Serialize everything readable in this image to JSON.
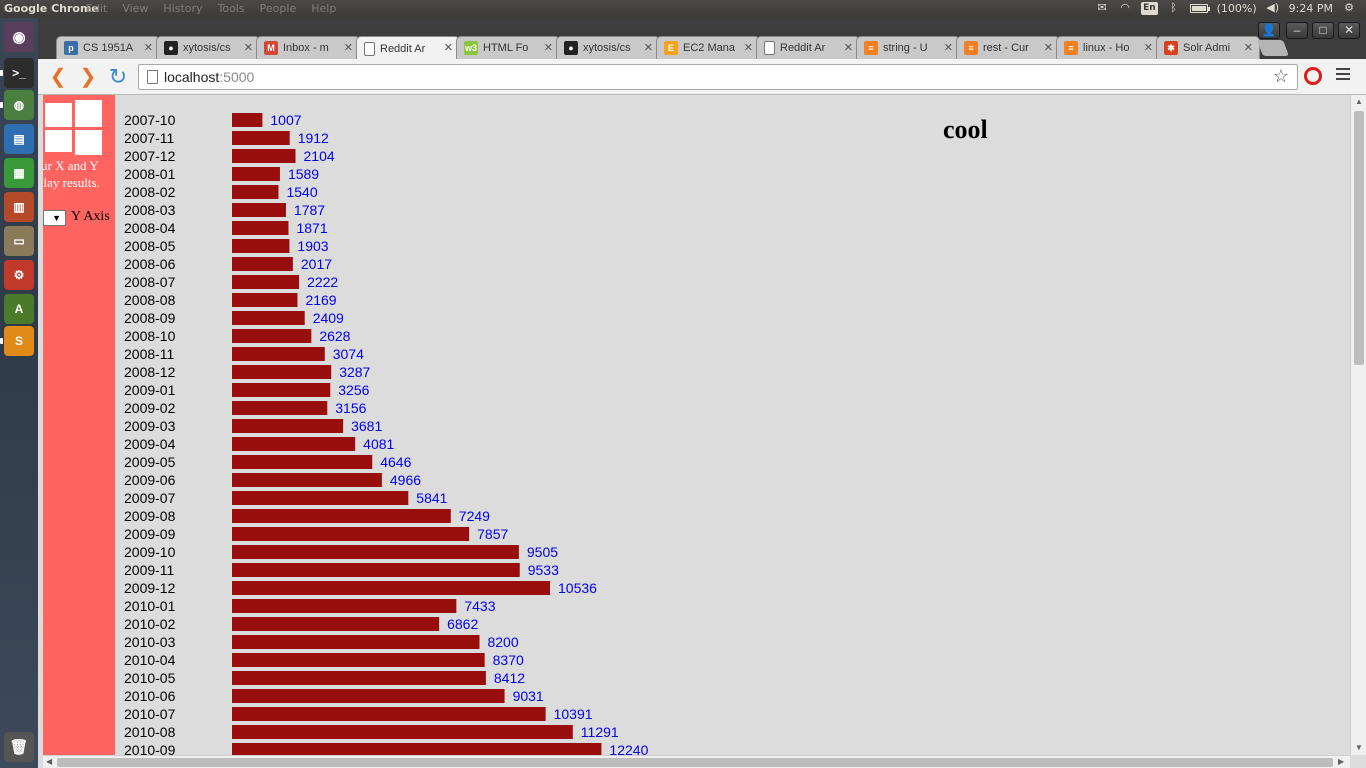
{
  "top_panel": {
    "app_name": "Google Chrome",
    "menus": [
      "Edit",
      "View",
      "History",
      "Tools",
      "People",
      "Help"
    ],
    "keyboard": "En",
    "battery": "(100%)",
    "time": "9:24 PM"
  },
  "launcher": {
    "items": [
      {
        "icon": "ubuntu-dash-icon",
        "color": "#5a3d5c"
      },
      {
        "icon": "terminal-icon",
        "color": "#2c2c2c"
      },
      {
        "icon": "chrome-icon",
        "color": "#4a7f3f"
      },
      {
        "icon": "writer-icon",
        "color": "#2f6fb1"
      },
      {
        "icon": "calc-icon",
        "color": "#3a9a3a"
      },
      {
        "icon": "impress-icon",
        "color": "#b54a2a"
      },
      {
        "icon": "files-icon",
        "color": "#8a7a5a"
      },
      {
        "icon": "settings-icon",
        "color": "#c0392b"
      },
      {
        "icon": "software-updater-icon",
        "color": "#4b7a2b"
      },
      {
        "icon": "sublime-text-icon",
        "color": "#e08a18"
      },
      {
        "icon": "trash-icon",
        "color": "#555555"
      }
    ]
  },
  "tabs": [
    {
      "title": "CS 1951A",
      "icon": "piazza-icon",
      "color": "#3b6ea5",
      "glyph": "p"
    },
    {
      "title": "xytosis/cs",
      "icon": "github-icon",
      "color": "#222222",
      "glyph": "●"
    },
    {
      "title": "Inbox - m",
      "icon": "gmail-icon",
      "color": "#d14836",
      "glyph": "M"
    },
    {
      "title": "Reddit Ar",
      "icon": "page-icon",
      "color": "#ffffff",
      "glyph": "",
      "active": true
    },
    {
      "title": "HTML Fo",
      "icon": "w3-icon",
      "color": "#8cc63f",
      "glyph": "w3"
    },
    {
      "title": "xytosis/cs",
      "icon": "github-icon",
      "color": "#222222",
      "glyph": "●"
    },
    {
      "title": "EC2 Mana",
      "icon": "aws-icon",
      "color": "#f7a21b",
      "glyph": "E"
    },
    {
      "title": "Reddit Ar",
      "icon": "page-icon",
      "color": "#ffffff",
      "glyph": ""
    },
    {
      "title": "string - U",
      "icon": "stackoverflow-icon",
      "color": "#f48024",
      "glyph": "≡"
    },
    {
      "title": "rest - Cur",
      "icon": "stackoverflow-icon",
      "color": "#f48024",
      "glyph": "≡"
    },
    {
      "title": "linux - Ho",
      "icon": "stackoverflow-icon",
      "color": "#f48024",
      "glyph": "≡"
    },
    {
      "title": "Solr Admi",
      "icon": "solr-icon",
      "color": "#d9411e",
      "glyph": "✱"
    }
  ],
  "address_bar": {
    "host": "localhost",
    "port": ":5000"
  },
  "sidebar": {
    "line1": "ur X and Y",
    "line2": "play results.",
    "y_axis_label": "Y Axis",
    "select_arrow": "▼"
  },
  "chart_data": {
    "type": "bar",
    "orientation": "horizontal",
    "title": "cool",
    "bar_color": "#990d0d",
    "value_label_color": "#0000ee",
    "categories": [
      "2007-10",
      "2007-11",
      "2007-12",
      "2008-01",
      "2008-02",
      "2008-03",
      "2008-04",
      "2008-05",
      "2008-06",
      "2008-07",
      "2008-08",
      "2008-09",
      "2008-10",
      "2008-11",
      "2008-12",
      "2009-01",
      "2009-02",
      "2009-03",
      "2009-04",
      "2009-05",
      "2009-06",
      "2009-07",
      "2009-08",
      "2009-09",
      "2009-10",
      "2009-11",
      "2009-12",
      "2010-01",
      "2010-02",
      "2010-03",
      "2010-04",
      "2010-05",
      "2010-06",
      "2010-07",
      "2010-08",
      "2010-09"
    ],
    "values": [
      1007,
      1912,
      2104,
      1589,
      1540,
      1787,
      1871,
      1903,
      2017,
      2222,
      2169,
      2409,
      2628,
      3074,
      3287,
      3256,
      3156,
      3681,
      4081,
      4646,
      4966,
      5841,
      7249,
      7857,
      9505,
      9533,
      10536,
      7433,
      6862,
      8200,
      8370,
      8412,
      9031,
      10391,
      11291,
      12240
    ]
  }
}
